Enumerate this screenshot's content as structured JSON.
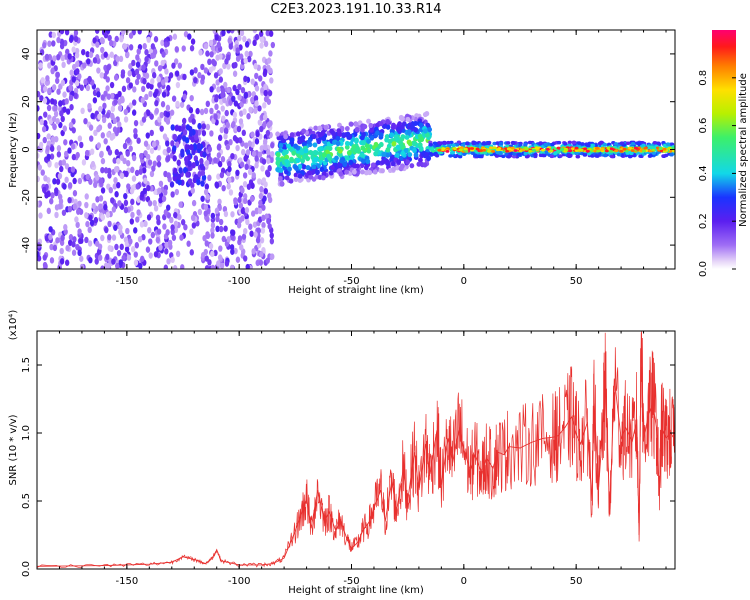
{
  "title": "C2E3.2023.191.10.33.R14",
  "chart_data": [
    {
      "type": "heatmap",
      "xlabel": "Height of straight line (km)",
      "ylabel": "Frequency (Hz)",
      "xlim": [
        -190,
        94
      ],
      "ylim": [
        -50,
        50
      ],
      "x_ticks": [
        "-150",
        "-100",
        "-50",
        "0",
        "50"
      ],
      "x_tick_values": [
        -150,
        -100,
        -50,
        0,
        50
      ],
      "y_ticks": [
        "-40",
        "-20",
        "0",
        "20",
        "40"
      ],
      "y_tick_values": [
        -40,
        -20,
        0,
        20,
        40
      ],
      "colorbar": {
        "label": "Normalized spectral amplitude",
        "range": [
          0,
          1
        ],
        "ticks": [
          "0.0",
          "0.2",
          "0.4",
          "0.6",
          "0.8"
        ],
        "tick_values": [
          0.0,
          0.2,
          0.4,
          0.6,
          0.8
        ],
        "colormap": "rainbow"
      },
      "regions": [
        {
          "x_range": [
            -190,
            -130
          ],
          "freq_range": [
            -50,
            50
          ],
          "amplitude": "low (0.0-0.15), scattered noise"
        },
        {
          "x_range": [
            -130,
            -115
          ],
          "freq_range": [
            -15,
            10
          ],
          "amplitude": "0.15-0.3 cluster"
        },
        {
          "x_range": [
            -115,
            -85
          ],
          "freq_range": [
            -50,
            50
          ],
          "amplitude": "low (0.0-0.15), scattered noise"
        },
        {
          "x_range": [
            -83,
            -15
          ],
          "freq_range": [
            -10,
            15
          ],
          "amplitude": "0.2-0.6 band"
        },
        {
          "x_range": [
            -15,
            94
          ],
          "freq_range": [
            -3,
            3
          ],
          "amplitude": "0.5-1.0 narrow line near 0 Hz"
        }
      ]
    },
    {
      "type": "line",
      "xlabel": "Height of straight line (km)",
      "ylabel": "SNR (10 * v/v)",
      "y_multiplier": "(x10⁴)",
      "xlim": [
        -190,
        94
      ],
      "ylim": [
        0,
        17500
      ],
      "x_ticks": [
        "-150",
        "-100",
        "-50",
        "0",
        "50"
      ],
      "x_tick_values": [
        -150,
        -100,
        -50,
        0,
        50
      ],
      "y_ticks": [
        "0.0",
        "0.5",
        "1.0",
        "1.5"
      ],
      "y_tick_values": [
        0,
        5000,
        10000,
        15000
      ],
      "series": [
        {
          "color": "#e8302e",
          "x": [
            -190,
            -160,
            -140,
            -130,
            -125,
            -120,
            -115,
            -112,
            -110,
            -108,
            -100,
            -90,
            -85,
            -80,
            -75,
            -72,
            -70,
            -68,
            -65,
            -62,
            -60,
            -57,
            -55,
            -52,
            -50,
            -47,
            -45,
            -42,
            -40,
            -37,
            -35,
            -32,
            -30,
            -27,
            -25,
            -22,
            -20,
            -17,
            -15,
            -12,
            -10,
            -7,
            -5,
            -2,
            0,
            3,
            5,
            8,
            10,
            13,
            15,
            18,
            20,
            25,
            30,
            35,
            40,
            42,
            45,
            48,
            50,
            52,
            55,
            57,
            58,
            60,
            62,
            63,
            65,
            67,
            70,
            72,
            75,
            77,
            78,
            79,
            80,
            82,
            84,
            86,
            87,
            88,
            90,
            92,
            94
          ],
          "y": [
            200,
            250,
            350,
            500,
            900,
            700,
            400,
            800,
            1400,
            600,
            300,
            300,
            400,
            800,
            2800,
            4200,
            5200,
            3000,
            5800,
            3500,
            4200,
            2800,
            3600,
            2200,
            1500,
            2000,
            2800,
            3500,
            4500,
            5800,
            3500,
            6500,
            4200,
            7300,
            5000,
            8600,
            5800,
            9200,
            7000,
            10200,
            6200,
            9600,
            7800,
            10400,
            8800,
            7200,
            8400,
            7000,
            8200,
            7400,
            8600,
            8400,
            9000,
            8900,
            9300,
            9600,
            9700,
            9800,
            10400,
            11200,
            9900,
            9200,
            10800,
            5000,
            12200,
            6000,
            10700,
            13400,
            4000,
            14000,
            9600,
            10400,
            9400,
            11000,
            2500,
            17400,
            9400,
            11200,
            12200,
            10200,
            5400,
            10500,
            9600,
            10000,
            9500
          ]
        }
      ]
    }
  ]
}
